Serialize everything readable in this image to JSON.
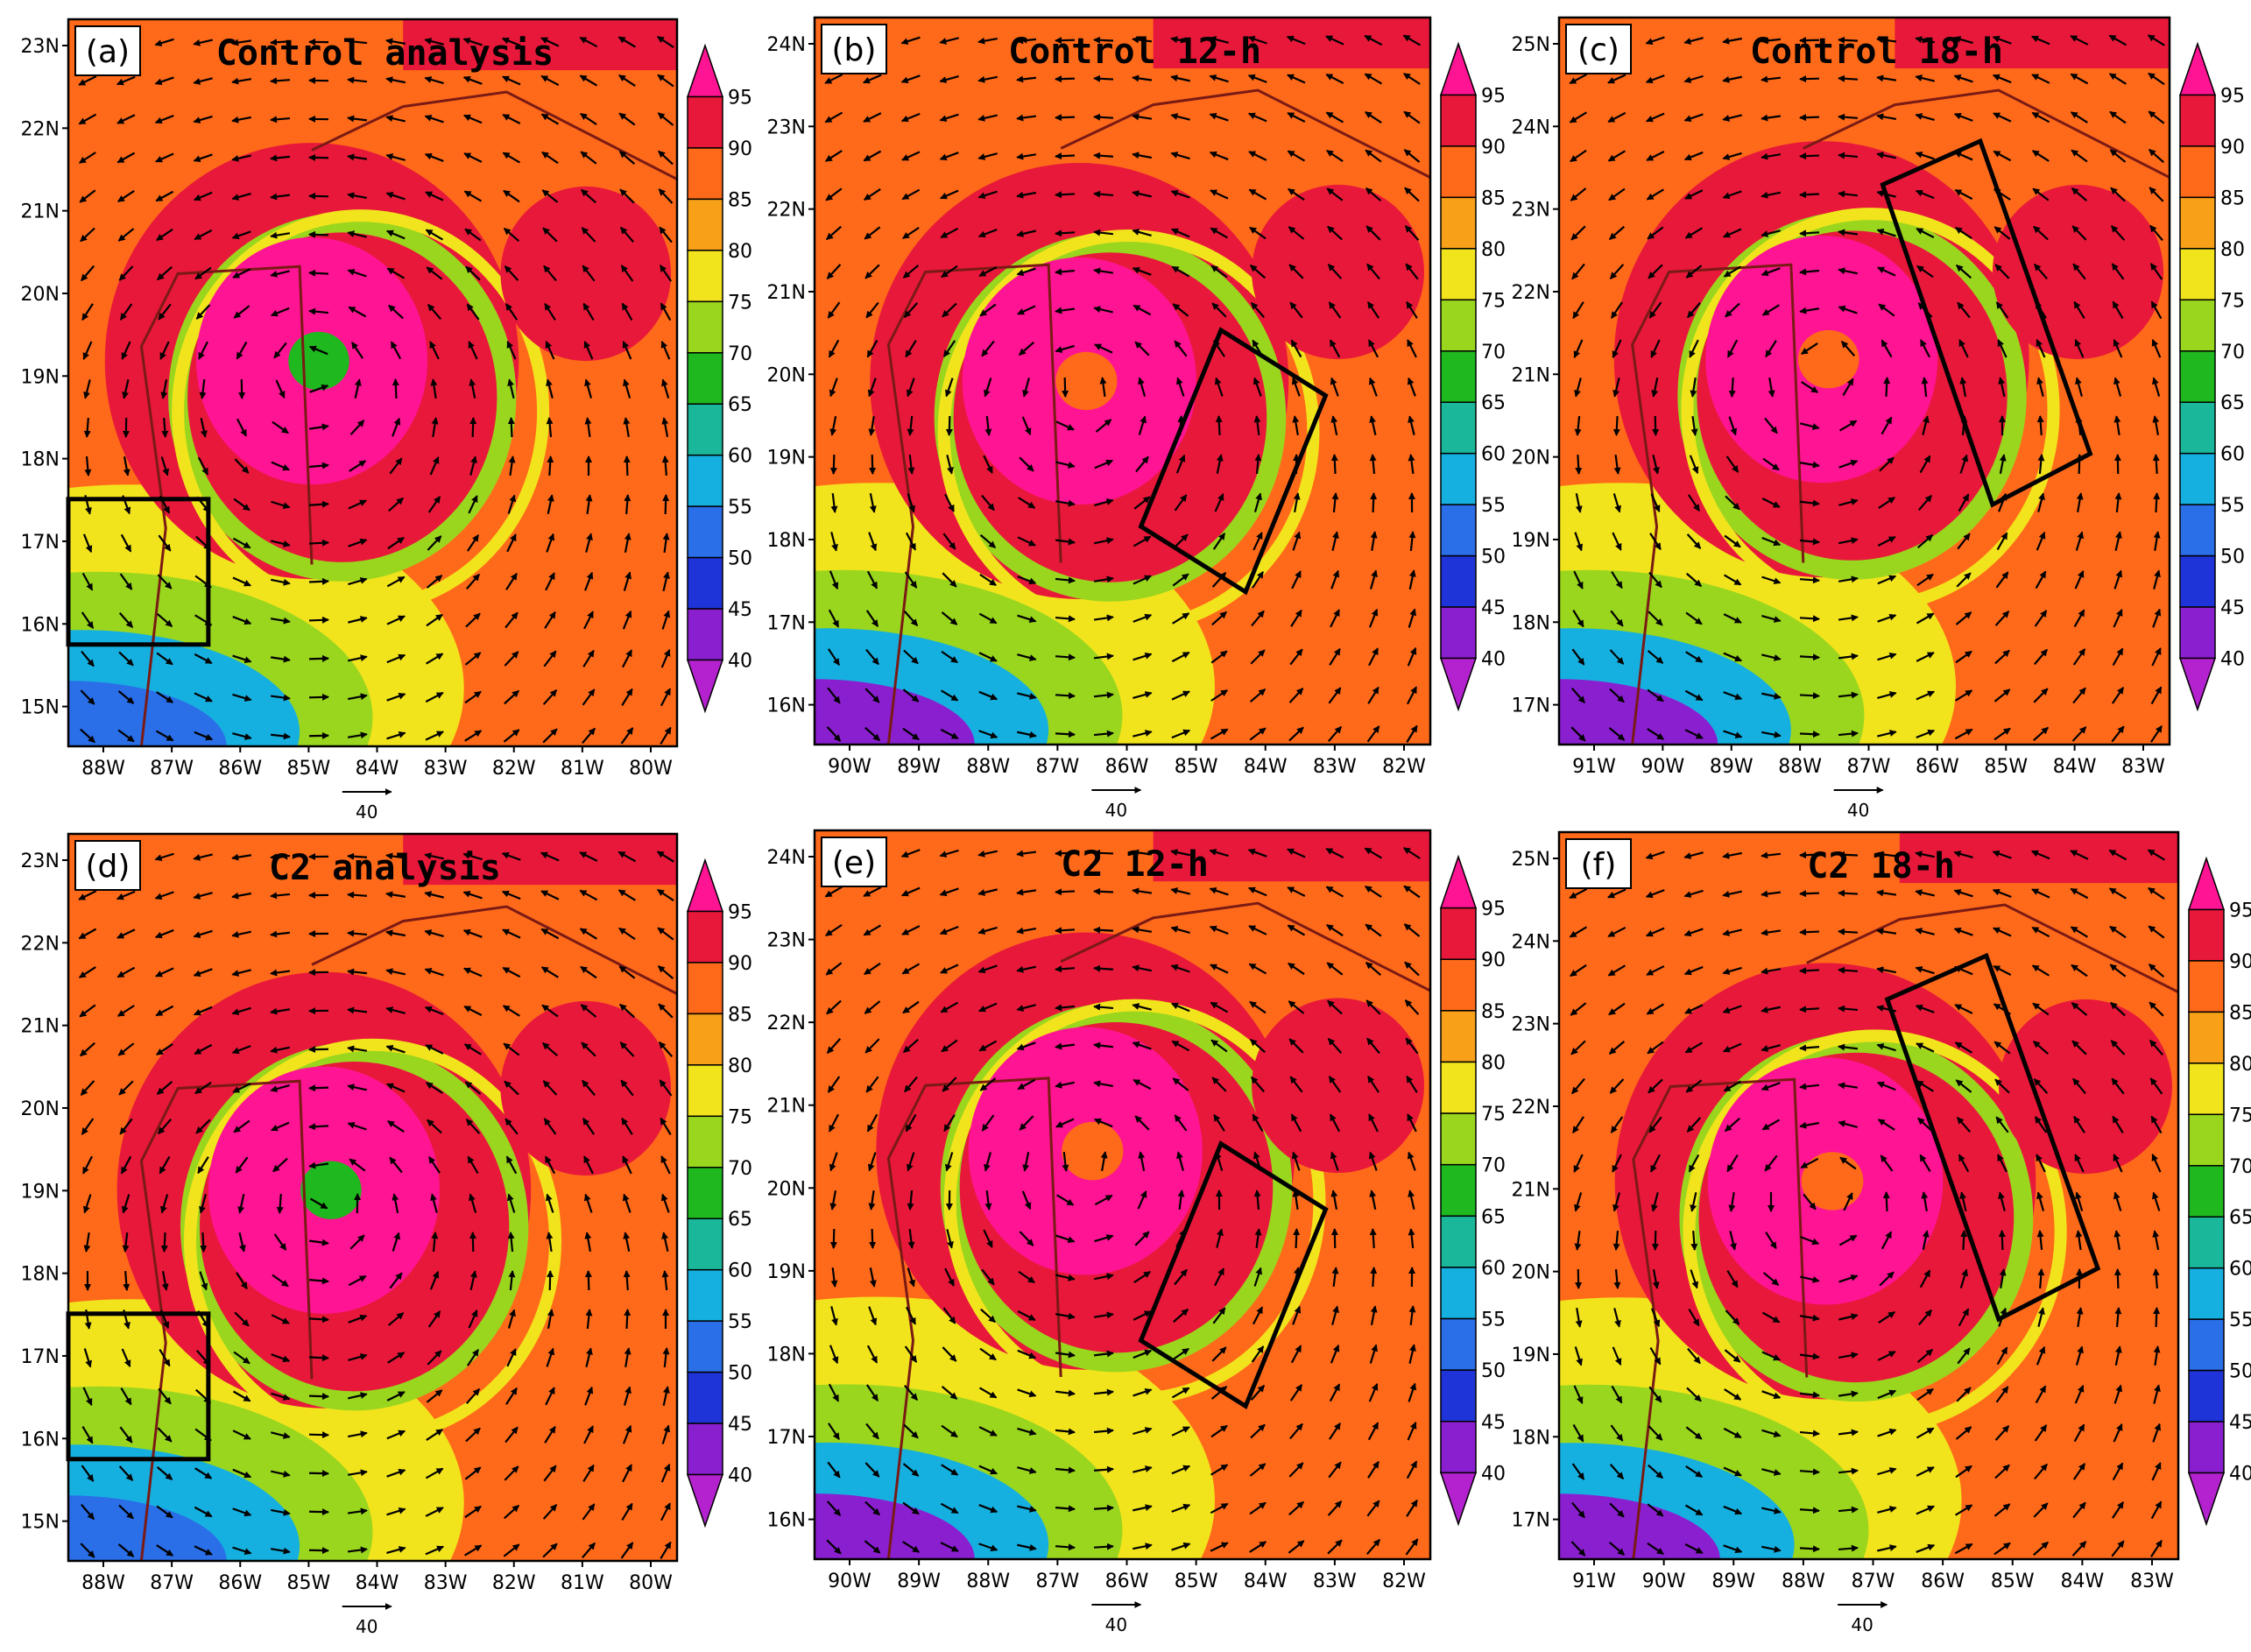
{
  "colorbar": {
    "levels": [
      "95",
      "90",
      "85",
      "80",
      "75",
      "70",
      "65",
      "60",
      "55",
      "50",
      "45",
      "40"
    ],
    "colors": [
      "#ff1493",
      "#e8183a",
      "#ff6a1a",
      "#f7a018",
      "#f2e41c",
      "#9ad61e",
      "#1fb81f",
      "#1bb79a",
      "#16b0e0",
      "#2a6ee8",
      "#1f34d8",
      "#8a1fd0",
      "#b422d0"
    ]
  },
  "vector_reference": "40",
  "panels": [
    {
      "id": "a",
      "letter": "(a)",
      "title": "Control analysis",
      "lat_labels": [
        "23N",
        "22N",
        "21N",
        "20N",
        "19N",
        "18N",
        "17N",
        "16N",
        "15N"
      ],
      "lon_labels": [
        "88W",
        "87W",
        "86W",
        "85W",
        "84W",
        "83W",
        "82W",
        "81W",
        "80W"
      ],
      "box": "rect"
    },
    {
      "id": "b",
      "letter": "(b)",
      "title": "Control 12-h",
      "lat_labels": [
        "24N",
        "23N",
        "22N",
        "21N",
        "20N",
        "19N",
        "18N",
        "17N",
        "16N"
      ],
      "lon_labels": [
        "90W",
        "89W",
        "88W",
        "87W",
        "86W",
        "85W",
        "84W",
        "83W",
        "82W"
      ],
      "box": "tilted"
    },
    {
      "id": "c",
      "letter": "(c)",
      "title": "Control 18-h",
      "lat_labels": [
        "25N",
        "24N",
        "23N",
        "22N",
        "21N",
        "20N",
        "19N",
        "18N",
        "17N"
      ],
      "lon_labels": [
        "91W",
        "90W",
        "89W",
        "88W",
        "87W",
        "86W",
        "85W",
        "84W",
        "83W"
      ],
      "box": "tilted-long"
    },
    {
      "id": "d",
      "letter": "(d)",
      "title": "C2 analysis",
      "lat_labels": [
        "23N",
        "22N",
        "21N",
        "20N",
        "19N",
        "18N",
        "17N",
        "16N",
        "15N"
      ],
      "lon_labels": [
        "88W",
        "87W",
        "86W",
        "85W",
        "84W",
        "83W",
        "82W",
        "81W",
        "80W"
      ],
      "box": "rect"
    },
    {
      "id": "e",
      "letter": "(e)",
      "title": "C2 12-h",
      "lat_labels": [
        "24N",
        "23N",
        "22N",
        "21N",
        "20N",
        "19N",
        "18N",
        "17N",
        "16N"
      ],
      "lon_labels": [
        "90W",
        "89W",
        "88W",
        "87W",
        "86W",
        "85W",
        "84W",
        "83W",
        "82W"
      ],
      "box": "tilted"
    },
    {
      "id": "f",
      "letter": "(f)",
      "title": "C2 18-h",
      "lat_labels": [
        "25N",
        "24N",
        "23N",
        "22N",
        "21N",
        "20N",
        "19N",
        "18N",
        "17N"
      ],
      "lon_labels": [
        "91W",
        "90W",
        "89W",
        "88W",
        "87W",
        "86W",
        "85W",
        "84W",
        "83W"
      ],
      "box": "tilted-long"
    }
  ]
}
